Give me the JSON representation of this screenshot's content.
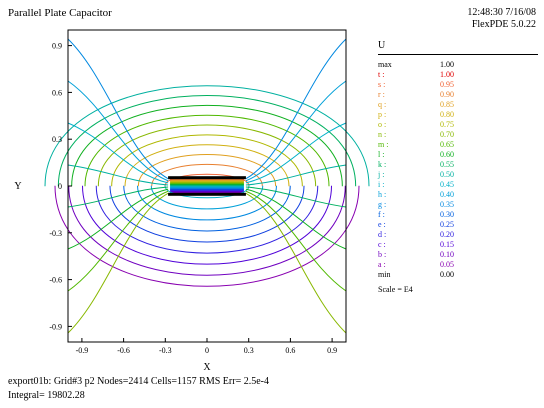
{
  "header": {
    "title": "Parallel Plate Capacitor",
    "timestamp": "12:48:30 7/16/08",
    "version": "FlexPDE 5.0.22"
  },
  "chart_data": {
    "type": "contour",
    "xlabel": "X",
    "ylabel": "Y",
    "xlim": [
      -1.0,
      1.0
    ],
    "ylim": [
      -1.0,
      1.0
    ],
    "xticks": [
      "-0.9",
      "-0.6",
      "-0.3",
      "0",
      "0.3",
      "0.6",
      "0.9"
    ],
    "yticks": [
      "0.9",
      "0.6",
      "0.3",
      "0",
      "-0.3",
      "-0.6",
      "-0.9"
    ],
    "variable": "U",
    "scale": "Scale = E4",
    "levels": [
      {
        "key": "max",
        "value": "1.00",
        "color": "#000000"
      },
      {
        "key": "t",
        "value": "1.00",
        "color": "#e00000"
      },
      {
        "key": "s",
        "value": "0.95",
        "color": "#f06030"
      },
      {
        "key": "r",
        "value": "0.90",
        "color": "#e88030"
      },
      {
        "key": "q",
        "value": "0.85",
        "color": "#e0a020"
      },
      {
        "key": "p",
        "value": "0.80",
        "color": "#d0b010"
      },
      {
        "key": "o",
        "value": "0.75",
        "color": "#b0b800"
      },
      {
        "key": "n",
        "value": "0.70",
        "color": "#88b800"
      },
      {
        "key": "m",
        "value": "0.65",
        "color": "#50b800"
      },
      {
        "key": "l",
        "value": "0.60",
        "color": "#10b020"
      },
      {
        "key": "k",
        "value": "0.55",
        "color": "#00b060"
      },
      {
        "key": "j",
        "value": "0.50",
        "color": "#00b0a0"
      },
      {
        "key": "i",
        "value": "0.45",
        "color": "#00b0c8"
      },
      {
        "key": "h",
        "value": "0.40",
        "color": "#00a0d8"
      },
      {
        "key": "g",
        "value": "0.35",
        "color": "#0088e0"
      },
      {
        "key": "f",
        "value": "0.30",
        "color": "#0060e0"
      },
      {
        "key": "e",
        "value": "0.25",
        "color": "#1040e0"
      },
      {
        "key": "d",
        "value": "0.20",
        "color": "#3020e0"
      },
      {
        "key": "c",
        "value": "0.15",
        "color": "#5000d8"
      },
      {
        "key": "b",
        "value": "0.10",
        "color": "#7000c0"
      },
      {
        "key": "a",
        "value": "0.05",
        "color": "#8800b0"
      },
      {
        "key": "min",
        "value": "0.00",
        "color": "#000000"
      }
    ],
    "plates": {
      "x_range": [
        -0.28,
        0.28
      ],
      "top_y": 0.05,
      "bottom_y": -0.05
    }
  },
  "footer": {
    "line1": "export01b:  Grid#3  p2  Nodes=2414 Cells=1157 RMS Err= 2.5e-4",
    "line2": "Integral=   19802.28"
  }
}
